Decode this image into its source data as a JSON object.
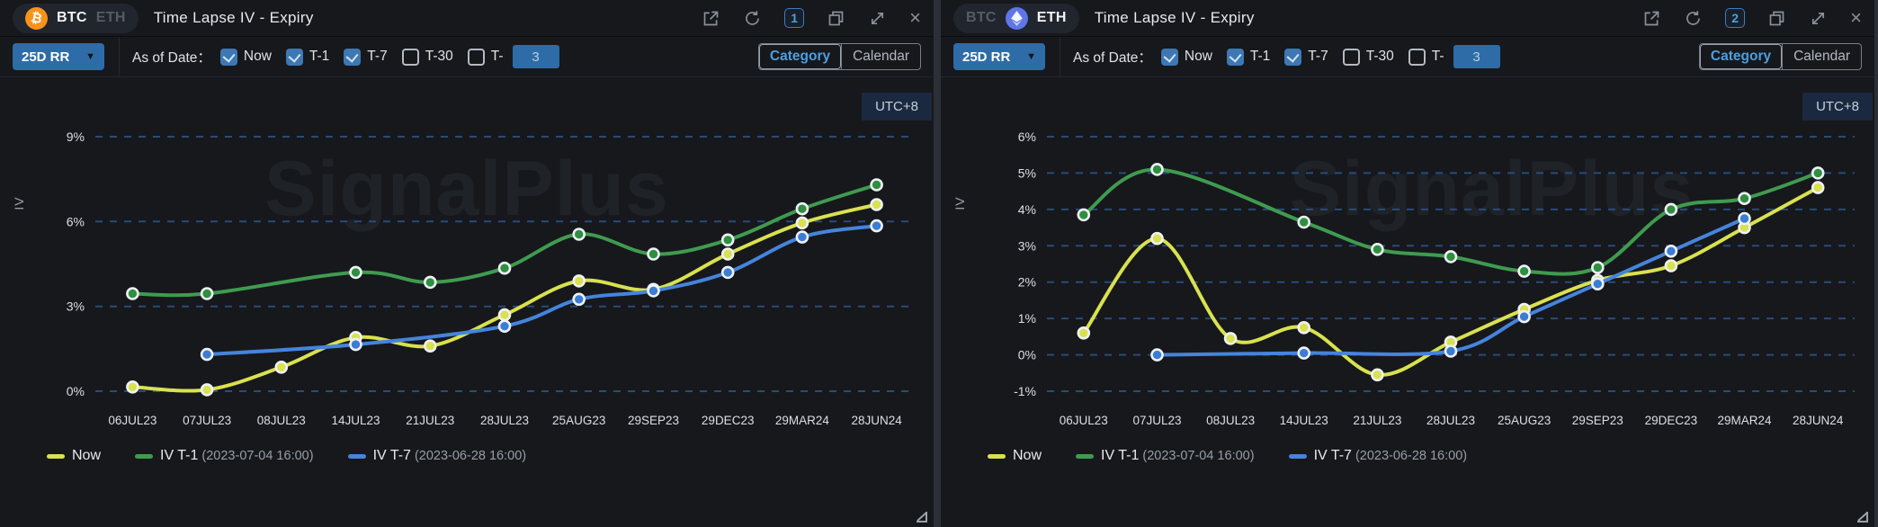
{
  "panels": [
    {
      "assets": [
        {
          "label": "BTC",
          "selected": true
        },
        {
          "label": "ETH",
          "selected": false
        }
      ],
      "title": "Time Lapse IV - Expiry",
      "window": {
        "badge": "1",
        "icons": [
          "open-external-icon",
          "refresh-icon",
          "count-badge",
          "duplicate-icon",
          "fullscreen-icon",
          "close-icon"
        ]
      },
      "controls": {
        "metric_dropdown": "25D RR",
        "as_of_label": "As of Date：",
        "checkboxes": [
          {
            "label": "Now",
            "checked": true
          },
          {
            "label": "T-1",
            "checked": true
          },
          {
            "label": "T-7",
            "checked": true
          },
          {
            "label": "T-30",
            "checked": false
          },
          {
            "label": "T-",
            "checked": false
          }
        ],
        "t_input_value": "3",
        "view_toggle": [
          {
            "label": "Category",
            "selected": true
          },
          {
            "label": "Calendar",
            "selected": false
          }
        ]
      },
      "utc_label": "UTC+8",
      "watermark": "SignalPlus",
      "chart_data": {
        "type": "line",
        "ylabel": "IV",
        "categories": [
          "06JUL23",
          "07JUL23",
          "08JUL23",
          "14JUL23",
          "21JUL23",
          "28JUL23",
          "25AUG23",
          "29SEP23",
          "29DEC23",
          "29MAR24",
          "28JUN24"
        ],
        "ylim": [
          0,
          9
        ],
        "yticks": [
          0,
          3,
          6,
          9
        ],
        "ytick_labels": [
          "0%",
          "3%",
          "6%",
          "9%"
        ],
        "grid": "dashed-horizontal",
        "legend_position": "bottom-left",
        "series": [
          {
            "name": "Now",
            "sub": "",
            "color": "#d9e14f",
            "marker_color": "#d9e14f",
            "values": [
              0.15,
              0.05,
              0.85,
              1.9,
              1.6,
              2.7,
              3.9,
              3.6,
              4.85,
              5.95,
              6.6
            ]
          },
          {
            "name": "IV T-1",
            "sub": "(2023-07-04 16:00)",
            "color": "#3f9b4f",
            "marker_color": "#2e8f3e",
            "values": [
              3.45,
              3.45,
              null,
              4.2,
              3.85,
              4.35,
              5.55,
              4.85,
              5.35,
              6.45,
              7.3
            ]
          },
          {
            "name": "IV T-7",
            "sub": "(2023-06-28 16:00)",
            "color": "#4584dd",
            "marker_color": "#3b7cd4",
            "values": [
              null,
              1.3,
              null,
              1.65,
              null,
              2.3,
              3.25,
              3.55,
              4.2,
              5.45,
              5.85
            ]
          }
        ]
      }
    },
    {
      "assets": [
        {
          "label": "BTC",
          "selected": false
        },
        {
          "label": "ETH",
          "selected": true
        }
      ],
      "title": "Time Lapse IV - Expiry",
      "window": {
        "badge": "2",
        "icons": [
          "open-external-icon",
          "refresh-icon",
          "count-badge",
          "duplicate-icon",
          "fullscreen-icon",
          "close-icon"
        ]
      },
      "controls": {
        "metric_dropdown": "25D RR",
        "as_of_label": "As of Date：",
        "checkboxes": [
          {
            "label": "Now",
            "checked": true
          },
          {
            "label": "T-1",
            "checked": true
          },
          {
            "label": "T-7",
            "checked": true
          },
          {
            "label": "T-30",
            "checked": false
          },
          {
            "label": "T-",
            "checked": false
          }
        ],
        "t_input_value": "3",
        "view_toggle": [
          {
            "label": "Category",
            "selected": true
          },
          {
            "label": "Calendar",
            "selected": false
          }
        ]
      },
      "utc_label": "UTC+8",
      "watermark": "SignalPlus",
      "chart_data": {
        "type": "line",
        "ylabel": "IV",
        "categories": [
          "06JUL23",
          "07JUL23",
          "08JUL23",
          "14JUL23",
          "21JUL23",
          "28JUL23",
          "25AUG23",
          "29SEP23",
          "29DEC23",
          "29MAR24",
          "28JUN24"
        ],
        "ylim": [
          -1,
          6
        ],
        "yticks": [
          -1,
          0,
          1,
          2,
          3,
          4,
          5,
          6
        ],
        "ytick_labels": [
          "-1%",
          "0%",
          "1%",
          "2%",
          "3%",
          "4%",
          "5%",
          "6%"
        ],
        "grid": "dashed-horizontal",
        "legend_position": "bottom-left",
        "series": [
          {
            "name": "Now",
            "sub": "",
            "color": "#d9e14f",
            "marker_color": "#d9e14f",
            "values": [
              0.6,
              3.2,
              0.45,
              0.75,
              -0.55,
              0.35,
              1.25,
              2.05,
              2.45,
              3.5,
              4.6
            ]
          },
          {
            "name": "IV T-1",
            "sub": "(2023-07-04 16:00)",
            "color": "#3f9b4f",
            "marker_color": "#2e8f3e",
            "values": [
              3.85,
              5.1,
              null,
              3.65,
              2.9,
              2.7,
              2.3,
              2.4,
              4.0,
              4.3,
              5.0
            ]
          },
          {
            "name": "IV T-7",
            "sub": "(2023-06-28 16:00)",
            "color": "#4584dd",
            "marker_color": "#3b7cd4",
            "values": [
              null,
              0.0,
              null,
              0.05,
              null,
              0.1,
              1.05,
              1.95,
              2.85,
              3.75,
              null
            ]
          }
        ]
      }
    }
  ]
}
